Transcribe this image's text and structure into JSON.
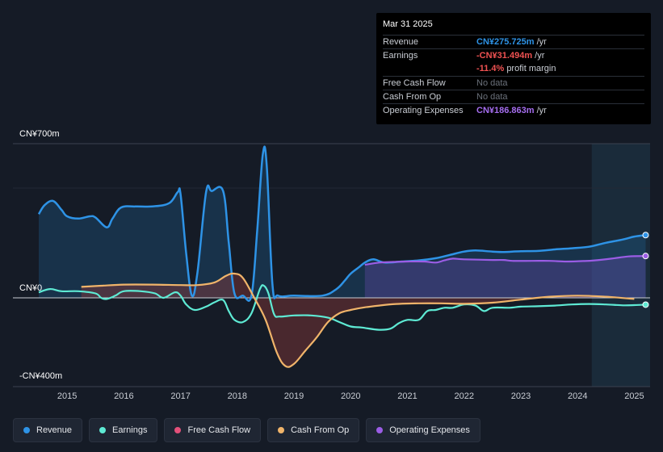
{
  "tooltip": {
    "date": "Mar 31 2025",
    "revenue": {
      "label": "Revenue",
      "value": "CN¥275.725m",
      "unit": "/yr"
    },
    "earnings": {
      "label": "Earnings",
      "value": "-CN¥31.494m",
      "unit": "/yr"
    },
    "margin": {
      "value": "-11.4%",
      "text": "profit margin"
    },
    "fcf": {
      "label": "Free Cash Flow",
      "value": "No data"
    },
    "cfo": {
      "label": "Cash From Op",
      "value": "No data"
    },
    "opex": {
      "label": "Operating Expenses",
      "value": "CN¥186.863m",
      "unit": "/yr"
    }
  },
  "colors": {
    "revenue": "#2e93e6",
    "earnings": "#5eead4",
    "fcf": "#e3507a",
    "cfo": "#f0b46a",
    "opex": "#9b5de5",
    "background": "#151b26"
  },
  "legend": [
    {
      "label": "Revenue",
      "color": "#2e93e6"
    },
    {
      "label": "Earnings",
      "color": "#5eead4"
    },
    {
      "label": "Free Cash Flow",
      "color": "#e3507a"
    },
    {
      "label": "Cash From Op",
      "color": "#f0b46a"
    },
    {
      "label": "Operating Expenses",
      "color": "#9b5de5"
    }
  ],
  "chart_data": {
    "type": "line",
    "y_labels": {
      "top": "CN¥700m",
      "zero": "CN¥0",
      "bottom": "-CN¥400m"
    },
    "ylim": [
      -400,
      700
    ],
    "xlim": [
      2014.5,
      2025.25
    ],
    "x_ticks": [
      "2015",
      "2016",
      "2017",
      "2018",
      "2019",
      "2020",
      "2021",
      "2022",
      "2023",
      "2024",
      "2025"
    ],
    "forecast_shade_start": 2024.25,
    "series": [
      {
        "name": "Revenue",
        "key": "revenue",
        "points": [
          [
            2014.5,
            380
          ],
          [
            2014.6,
            420
          ],
          [
            2014.75,
            440
          ],
          [
            2014.9,
            400
          ],
          [
            2015.0,
            370
          ],
          [
            2015.2,
            360
          ],
          [
            2015.4,
            370
          ],
          [
            2015.5,
            365
          ],
          [
            2015.7,
            320
          ],
          [
            2015.8,
            360
          ],
          [
            2015.95,
            410
          ],
          [
            2016.2,
            415
          ],
          [
            2016.5,
            415
          ],
          [
            2016.8,
            430
          ],
          [
            2016.95,
            480
          ],
          [
            2017.0,
            470
          ],
          [
            2017.1,
            200
          ],
          [
            2017.2,
            10
          ],
          [
            2017.3,
            120
          ],
          [
            2017.45,
            480
          ],
          [
            2017.55,
            485
          ],
          [
            2017.75,
            485
          ],
          [
            2017.85,
            250
          ],
          [
            2017.95,
            20
          ],
          [
            2018.1,
            10
          ],
          [
            2018.25,
            10
          ],
          [
            2018.35,
            300
          ],
          [
            2018.45,
            650
          ],
          [
            2018.52,
            600
          ],
          [
            2018.62,
            60
          ],
          [
            2018.72,
            10
          ],
          [
            2019.0,
            10
          ],
          [
            2019.5,
            10
          ],
          [
            2019.75,
            40
          ],
          [
            2019.9,
            80
          ],
          [
            2020.0,
            110
          ],
          [
            2020.15,
            140
          ],
          [
            2020.25,
            160
          ],
          [
            2020.4,
            175
          ],
          [
            2020.6,
            160
          ],
          [
            2020.9,
            165
          ],
          [
            2021.2,
            170
          ],
          [
            2021.5,
            180
          ],
          [
            2021.75,
            195
          ],
          [
            2022.0,
            210
          ],
          [
            2022.2,
            215
          ],
          [
            2022.5,
            210
          ],
          [
            2022.7,
            208
          ],
          [
            2023.0,
            212
          ],
          [
            2023.3,
            213
          ],
          [
            2023.6,
            220
          ],
          [
            2023.9,
            225
          ],
          [
            2024.2,
            232
          ],
          [
            2024.5,
            250
          ],
          [
            2024.8,
            265
          ],
          [
            2025.0,
            278
          ],
          [
            2025.2,
            285
          ]
        ]
      },
      {
        "name": "Earnings",
        "key": "earnings",
        "points": [
          [
            2014.5,
            25
          ],
          [
            2014.7,
            40
          ],
          [
            2014.9,
            30
          ],
          [
            2015.2,
            30
          ],
          [
            2015.5,
            20
          ],
          [
            2015.6,
            0
          ],
          [
            2015.7,
            -5
          ],
          [
            2015.85,
            10
          ],
          [
            2016.0,
            30
          ],
          [
            2016.3,
            30
          ],
          [
            2016.55,
            20
          ],
          [
            2016.7,
            0
          ],
          [
            2016.9,
            25
          ],
          [
            2017.0,
            10
          ],
          [
            2017.1,
            -30
          ],
          [
            2017.25,
            -55
          ],
          [
            2017.45,
            -40
          ],
          [
            2017.6,
            -20
          ],
          [
            2017.75,
            -10
          ],
          [
            2017.85,
            -60
          ],
          [
            2017.95,
            -100
          ],
          [
            2018.1,
            -110
          ],
          [
            2018.25,
            -70
          ],
          [
            2018.4,
            40
          ],
          [
            2018.47,
            55
          ],
          [
            2018.55,
            20
          ],
          [
            2018.65,
            -75
          ],
          [
            2018.75,
            -85
          ],
          [
            2019.0,
            -80
          ],
          [
            2019.3,
            -80
          ],
          [
            2019.6,
            -90
          ],
          [
            2019.8,
            -110
          ],
          [
            2020.0,
            -130
          ],
          [
            2020.2,
            -135
          ],
          [
            2020.5,
            -145
          ],
          [
            2020.7,
            -140
          ],
          [
            2020.85,
            -115
          ],
          [
            2021.0,
            -100
          ],
          [
            2021.2,
            -100
          ],
          [
            2021.35,
            -60
          ],
          [
            2021.5,
            -55
          ],
          [
            2021.65,
            -45
          ],
          [
            2021.8,
            -45
          ],
          [
            2022.0,
            -30
          ],
          [
            2022.2,
            -35
          ],
          [
            2022.35,
            -60
          ],
          [
            2022.5,
            -45
          ],
          [
            2022.8,
            -45
          ],
          [
            2023.0,
            -40
          ],
          [
            2023.3,
            -38
          ],
          [
            2023.6,
            -35
          ],
          [
            2023.9,
            -30
          ],
          [
            2024.2,
            -28
          ],
          [
            2024.5,
            -30
          ],
          [
            2024.8,
            -34
          ],
          [
            2025.0,
            -33
          ],
          [
            2025.2,
            -31
          ]
        ]
      },
      {
        "name": "Cash From Op",
        "key": "cfo",
        "points": [
          [
            2015.25,
            50
          ],
          [
            2015.6,
            55
          ],
          [
            2016.0,
            60
          ],
          [
            2016.5,
            60
          ],
          [
            2017.0,
            58
          ],
          [
            2017.3,
            58
          ],
          [
            2017.6,
            70
          ],
          [
            2017.8,
            100
          ],
          [
            2017.95,
            110
          ],
          [
            2018.1,
            90
          ],
          [
            2018.3,
            0
          ],
          [
            2018.5,
            -100
          ],
          [
            2018.7,
            -250
          ],
          [
            2018.85,
            -310
          ],
          [
            2019.0,
            -300
          ],
          [
            2019.2,
            -240
          ],
          [
            2019.4,
            -180
          ],
          [
            2019.6,
            -110
          ],
          [
            2019.8,
            -70
          ],
          [
            2020.0,
            -55
          ],
          [
            2020.2,
            -45
          ],
          [
            2020.5,
            -35
          ],
          [
            2020.8,
            -28
          ],
          [
            2021.2,
            -25
          ],
          [
            2021.6,
            -25
          ],
          [
            2022.0,
            -27
          ],
          [
            2022.5,
            -22
          ],
          [
            2023.0,
            -8
          ],
          [
            2023.5,
            5
          ],
          [
            2024.0,
            10
          ],
          [
            2024.5,
            5
          ],
          [
            2025.0,
            -5
          ]
        ]
      },
      {
        "name": "Operating Expenses",
        "key": "opex",
        "points": [
          [
            2020.25,
            150
          ],
          [
            2020.5,
            160
          ],
          [
            2020.75,
            163
          ],
          [
            2021.0,
            165
          ],
          [
            2021.3,
            165
          ],
          [
            2021.5,
            160
          ],
          [
            2021.65,
            170
          ],
          [
            2021.8,
            178
          ],
          [
            2022.0,
            175
          ],
          [
            2022.5,
            172
          ],
          [
            2022.7,
            172
          ],
          [
            2022.85,
            168
          ],
          [
            2023.2,
            168
          ],
          [
            2023.5,
            168
          ],
          [
            2023.8,
            165
          ],
          [
            2024.1,
            167
          ],
          [
            2024.3,
            170
          ],
          [
            2024.6,
            178
          ],
          [
            2024.9,
            188
          ],
          [
            2025.2,
            190
          ]
        ]
      }
    ]
  }
}
